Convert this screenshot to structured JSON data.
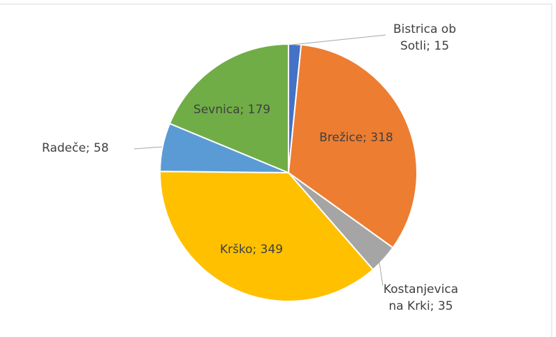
{
  "chart_data": {
    "type": "pie",
    "categories": [
      "Bistrica ob Sotli",
      "Brežice",
      "Kostanjevica na Krki",
      "Krško",
      "Radeče",
      "Sevnica"
    ],
    "values": [
      15,
      318,
      35,
      349,
      58,
      179
    ],
    "value_labels": [
      "Bistrica ob Sotli; 15",
      "Brežice; 318",
      "Kostanjevica na Krki; 35",
      "Krško; 349",
      "Radeče; 58",
      "Sevnica; 179"
    ],
    "colors": [
      "#4472c4",
      "#ed7d31",
      "#a5a5a5",
      "#ffc000",
      "#5b9bd5",
      "#70ad47"
    ]
  }
}
